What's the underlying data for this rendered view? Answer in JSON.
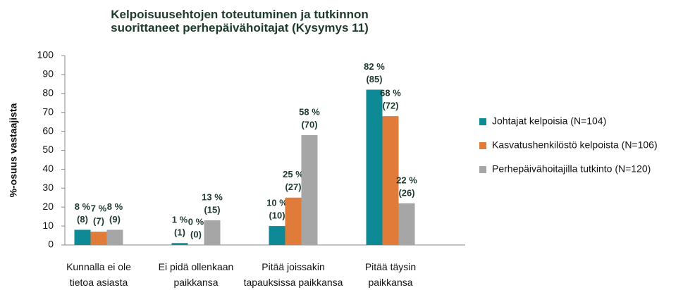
{
  "chart_data": {
    "type": "bar",
    "title": "Kelpoisuusehtojen toteutuminen ja tutkinnon\nsuorittaneet perhepäivähoitajat (Kysymys 11)",
    "y_label": "%-osuus vastaajista",
    "categories": [
      "Kunnalla ei ole\ntietoa asiasta",
      "Ei pidä ollenkaan\npaikkansa",
      "Pitää joissakin\ntapauksissa paikkansa",
      "Pitää täysin\npaikkansa"
    ],
    "series": [
      {
        "name": "Johtajat kelpoisia (N=104)",
        "color": "#0e8a97",
        "values": [
          8,
          1,
          10,
          82
        ],
        "value_labels": [
          "8 %",
          "1 %",
          "10 %",
          "82 %"
        ],
        "count_labels": [
          "(8)",
          "(1)",
          "(10)",
          "(85)"
        ]
      },
      {
        "name": "Kasvatushenkilöstö kelpoista (N=106)",
        "color": "#e07b39",
        "values": [
          7,
          0,
          25,
          68
        ],
        "value_labels": [
          "7 %",
          "0 %",
          "25 %",
          "68 %"
        ],
        "count_labels": [
          "(7)",
          "(0)",
          "(27)",
          "(72)"
        ]
      },
      {
        "name": "Perhepäivähoitajilla tutkinto (N=120)",
        "color": "#a6a6a6",
        "values": [
          8,
          13,
          58,
          22
        ],
        "value_labels": [
          "8 %",
          "13 %",
          "58 %",
          "22 %"
        ],
        "count_labels": [
          "(9)",
          "(15)",
          "(70)",
          "(26)"
        ]
      }
    ],
    "ylim": [
      0,
      100
    ],
    "yticks": [
      0,
      10,
      20,
      30,
      40,
      50,
      60,
      70,
      80,
      90,
      100
    ],
    "grid": false,
    "legend": "right"
  }
}
